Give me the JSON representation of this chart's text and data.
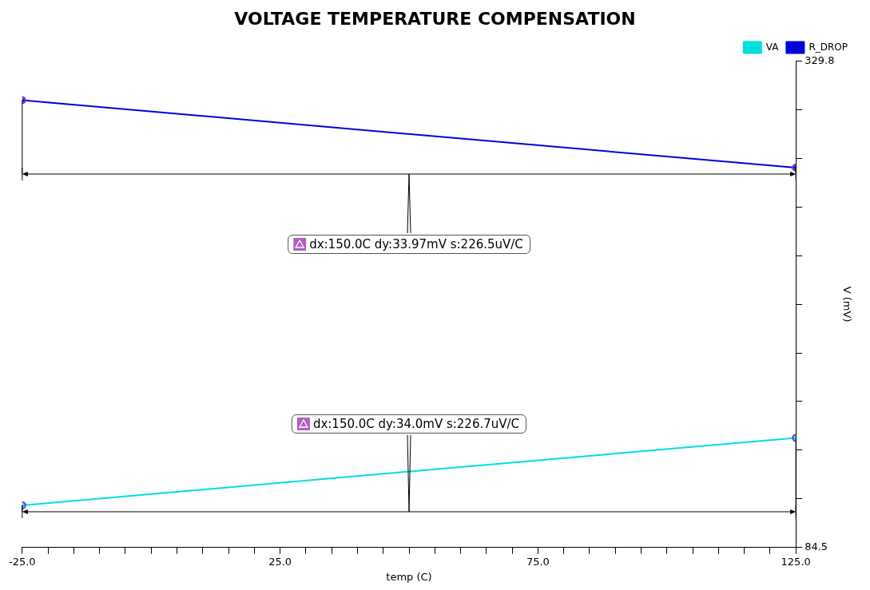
{
  "chart_data": {
    "type": "line",
    "title": "VOLTAGE TEMPERATURE COMPENSATION",
    "xlabel": "temp (C)",
    "ylabel": "V (mV)",
    "x": [
      -25,
      125
    ],
    "series": [
      {
        "name": "VA",
        "color": "#00dede",
        "values": [
          105.8,
          139.8
        ]
      },
      {
        "name": "R_DROP",
        "color": "#0000dd",
        "values": [
          310.0,
          276.0
        ]
      }
    ],
    "xlim": [
      -25,
      125
    ],
    "xticks": [
      {
        "value": -25,
        "label": "-25.0"
      },
      {
        "value": -20,
        "label": null
      },
      {
        "value": -15,
        "label": null
      },
      {
        "value": -10,
        "label": null
      },
      {
        "value": -5,
        "label": null
      },
      {
        "value": 0,
        "label": null
      },
      {
        "value": 5,
        "label": null
      },
      {
        "value": 10,
        "label": null
      },
      {
        "value": 15,
        "label": null
      },
      {
        "value": 20,
        "label": null
      },
      {
        "value": 25,
        "label": "25.0"
      },
      {
        "value": 30,
        "label": null
      },
      {
        "value": 35,
        "label": null
      },
      {
        "value": 40,
        "label": null
      },
      {
        "value": 45,
        "label": null
      },
      {
        "value": 50,
        "label": null
      },
      {
        "value": 55,
        "label": null
      },
      {
        "value": 60,
        "label": null
      },
      {
        "value": 65,
        "label": null
      },
      {
        "value": 70,
        "label": null
      },
      {
        "value": 75,
        "label": "75.0"
      },
      {
        "value": 80,
        "label": null
      },
      {
        "value": 85,
        "label": null
      },
      {
        "value": 90,
        "label": null
      },
      {
        "value": 95,
        "label": null
      },
      {
        "value": 100,
        "label": null
      },
      {
        "value": 105,
        "label": null
      },
      {
        "value": 110,
        "label": null
      },
      {
        "value": 115,
        "label": null
      },
      {
        "value": 120,
        "label": null
      },
      {
        "value": 125,
        "label": "125.0"
      }
    ],
    "ylim": [
      84.5,
      329.8
    ],
    "yticks": [
      84.5,
      {
        "value": 109.03,
        "label": null
      },
      {
        "value": 133.56,
        "label": null
      },
      {
        "value": 158.09,
        "label": null
      },
      {
        "value": 182.62,
        "label": null
      },
      {
        "value": 207.15,
        "label": null
      },
      {
        "value": 231.68,
        "label": null
      },
      {
        "value": 256.21,
        "label": null
      },
      {
        "value": 280.74,
        "label": null
      },
      {
        "value": 305.27,
        "label": null
      },
      329.8
    ],
    "annotations": [
      "dx:150.0C dy:34.0mV s:226.7uV/C",
      "dx:150.0C dy:33.97mV s:226.5uV/C"
    ],
    "grid": false,
    "legend": "top right",
    "marker": "circle",
    "line_style": "solid"
  }
}
